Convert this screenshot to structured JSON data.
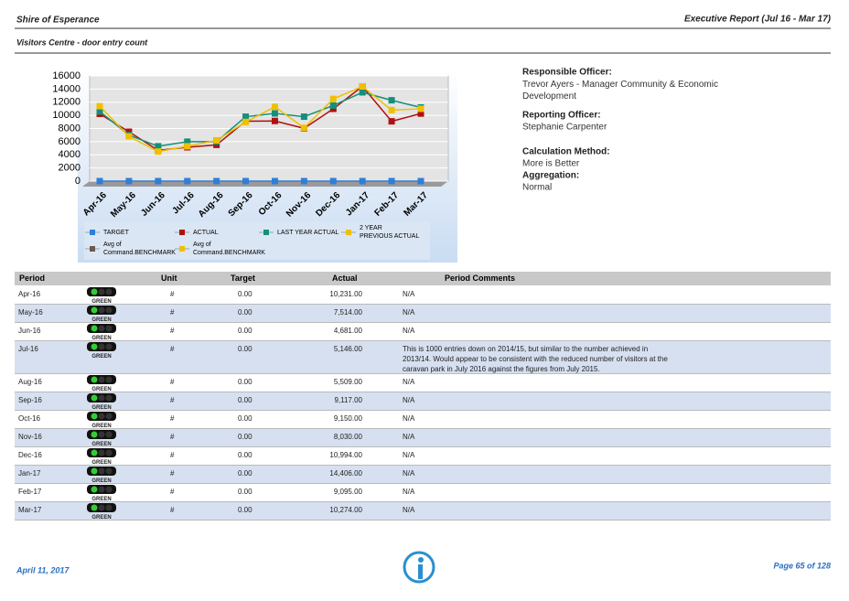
{
  "header": {
    "org": "Shire of Esperance",
    "report": "Executive Report (Jul 16 - Mar 17)",
    "subtitle": "Visitors Centre - door entry count"
  },
  "chart_data": {
    "type": "line",
    "categories": [
      "Apr-16",
      "May-16",
      "Jun-16",
      "Jul-16",
      "Aug-16",
      "Sep-16",
      "Oct-16",
      "Nov-16",
      "Dec-16",
      "Jan-17",
      "Feb-17",
      "Mar-17"
    ],
    "series": [
      {
        "name": "TARGET",
        "color": "#2f7fd8",
        "values": [
          0,
          0,
          0,
          0,
          0,
          0,
          0,
          0,
          0,
          0,
          0,
          0
        ]
      },
      {
        "name": "ACTUAL",
        "color": "#b01010",
        "values": [
          10231,
          7514,
          4681,
          5146,
          5509,
          9117,
          9150,
          8030,
          10994,
          14406,
          9095,
          10274
        ]
      },
      {
        "name": "LAST YEAR ACTUAL",
        "color": "#14907a",
        "values": [
          10600,
          7000,
          5300,
          6000,
          6000,
          9800,
          10300,
          9800,
          11500,
          13500,
          12300,
          11200
        ]
      },
      {
        "name": "2 YEAR PREVIOUS ACTUAL",
        "color": "#f0c000",
        "values": [
          11400,
          6800,
          4500,
          5300,
          6200,
          9000,
          11300,
          8100,
          12500,
          14400,
          10800,
          11000
        ]
      },
      {
        "name": "Avg of Command.BENCHMARK",
        "color": "#6a5a50",
        "values": [
          null,
          null,
          null,
          null,
          null,
          null,
          null,
          null,
          null,
          null,
          null,
          null
        ]
      },
      {
        "name": "Avg of Command.BENCHMARK",
        "color": "#f0c000",
        "values": [
          null,
          null,
          null,
          null,
          null,
          null,
          null,
          null,
          null,
          null,
          null,
          null
        ]
      }
    ],
    "ylim": [
      0,
      16000
    ],
    "yticks": [
      0,
      2000,
      4000,
      6000,
      8000,
      10000,
      12000,
      14000,
      16000
    ],
    "grid": true
  },
  "info": [
    {
      "label": "Responsible Officer:",
      "value": "Trevor Ayers - Manager Community & Economic Development"
    },
    {
      "label": "Reporting Officer:",
      "value": "Stephanie Carpenter"
    },
    {
      "label": "Calculation Method:",
      "value": "More is Better"
    },
    {
      "label": "Aggregation:",
      "value": "Normal"
    }
  ],
  "table": {
    "columns": [
      "Period",
      "Unit",
      "Target",
      "Actual",
      "Period Comments"
    ],
    "rows": [
      {
        "period": "Apr-16",
        "status": "GREEN",
        "unit": "#",
        "target": "0.00",
        "actual": "10,231.00",
        "comment": "N/A"
      },
      {
        "period": "May-16",
        "status": "GREEN",
        "unit": "#",
        "target": "0.00",
        "actual": "7,514.00",
        "comment": "N/A"
      },
      {
        "period": "Jun-16",
        "status": "GREEN",
        "unit": "#",
        "target": "0.00",
        "actual": "4,681.00",
        "comment": "N/A"
      },
      {
        "period": "Jul-16",
        "status": "GREEN",
        "unit": "#",
        "target": "0.00",
        "actual": "5,146.00",
        "comment": "This is 1000 entries down on 2014/15, but similar to the number achieved in 2013/14. Would appear to be consistent with the reduced number of visitors at the caravan park in July 2016 against the figures from July 2015."
      },
      {
        "period": "Aug-16",
        "status": "GREEN",
        "unit": "#",
        "target": "0.00",
        "actual": "5,509.00",
        "comment": "N/A"
      },
      {
        "period": "Sep-16",
        "status": "GREEN",
        "unit": "#",
        "target": "0.00",
        "actual": "9,117.00",
        "comment": "N/A"
      },
      {
        "period": "Oct-16",
        "status": "GREEN",
        "unit": "#",
        "target": "0.00",
        "actual": "9,150.00",
        "comment": "N/A"
      },
      {
        "period": "Nov-16",
        "status": "GREEN",
        "unit": "#",
        "target": "0.00",
        "actual": "8,030.00",
        "comment": "N/A"
      },
      {
        "period": "Dec-16",
        "status": "GREEN",
        "unit": "#",
        "target": "0.00",
        "actual": "10,994.00",
        "comment": "N/A"
      },
      {
        "period": "Jan-17",
        "status": "GREEN",
        "unit": "#",
        "target": "0.00",
        "actual": "14,406.00",
        "comment": "N/A"
      },
      {
        "period": "Feb-17",
        "status": "GREEN",
        "unit": "#",
        "target": "0.00",
        "actual": "9,095.00",
        "comment": "N/A"
      },
      {
        "period": "Mar-17",
        "status": "GREEN",
        "unit": "#",
        "target": "0.00",
        "actual": "10,274.00",
        "comment": "N/A"
      }
    ]
  },
  "footer": {
    "date": "April 11, 2017",
    "page": "Page 65 of 128"
  }
}
